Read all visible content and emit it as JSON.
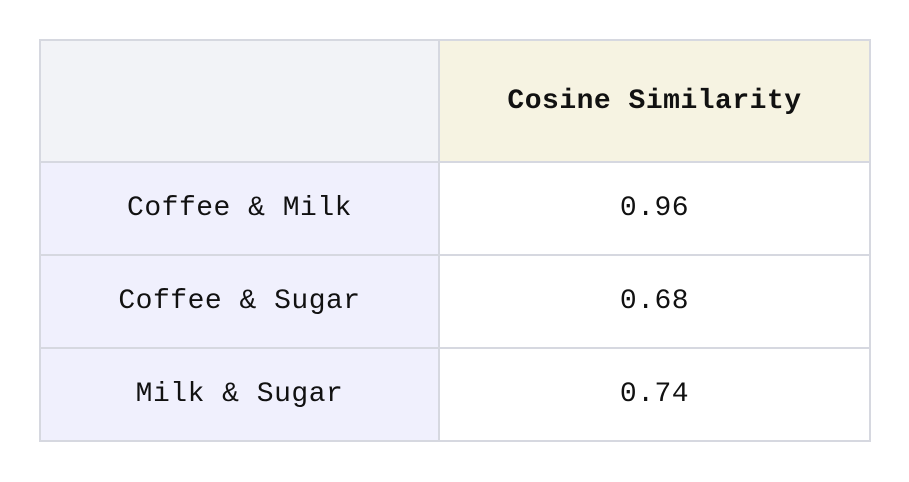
{
  "table": {
    "header": {
      "corner": "",
      "value_column": "Cosine Similarity"
    },
    "rows": [
      {
        "pair": "Coffee & Milk",
        "similarity": "0.96"
      },
      {
        "pair": "Coffee & Sugar",
        "similarity": "0.68"
      },
      {
        "pair": "Milk & Sugar",
        "similarity": "0.74"
      }
    ]
  },
  "colors": {
    "border": "#d6d8e0",
    "header_corner_bg": "#f2f3f7",
    "header_value_bg": "#f6f3e2",
    "row_label_bg": "#f0f0fd",
    "row_value_bg": "#ffffff"
  }
}
